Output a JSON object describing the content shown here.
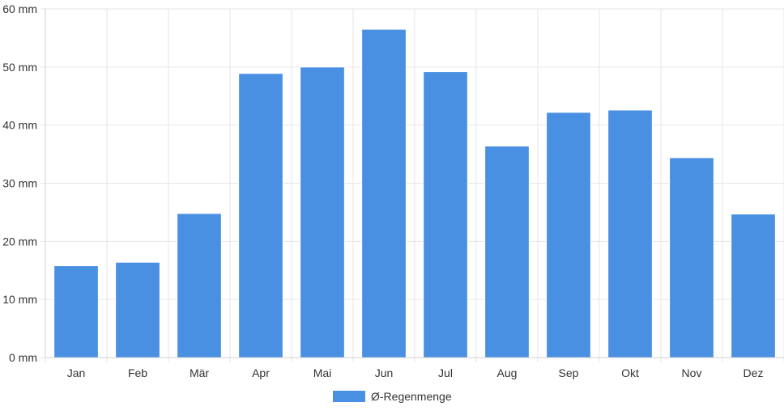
{
  "chart_data": {
    "type": "bar",
    "categories": [
      "Jan",
      "Feb",
      "Mär",
      "Apr",
      "Mai",
      "Jun",
      "Jul",
      "Aug",
      "Sep",
      "Okt",
      "Nov",
      "Dez"
    ],
    "series": [
      {
        "name": "Ø-Regenmenge",
        "color": "#4a90e2",
        "values": [
          15.8,
          16.4,
          24.8,
          48.9,
          50.0,
          56.5,
          49.2,
          36.4,
          42.2,
          42.6,
          34.4,
          24.7
        ]
      }
    ],
    "yticks": [
      "0 mm",
      "10 mm",
      "20 mm",
      "30 mm",
      "40 mm",
      "50 mm",
      "60 mm"
    ],
    "ylim": [
      0,
      60
    ],
    "ytick_step": 10,
    "grid": true,
    "legend_position": "bottom-center",
    "title": "",
    "xlabel": "",
    "ylabel": ""
  }
}
